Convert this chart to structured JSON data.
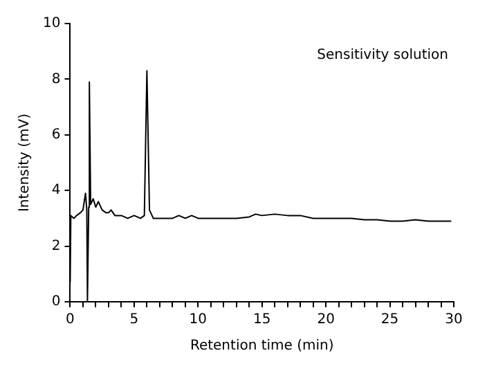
{
  "chart_data": {
    "type": "line",
    "xlabel": "Retention time (min)",
    "ylabel": "Intensity (mV)",
    "annotations": [
      "Sensitivity solution"
    ],
    "xlim": [
      0,
      30
    ],
    "ylim": [
      0,
      10
    ],
    "xticks": [
      0,
      {
        "value": 1,
        "label": null
      },
      {
        "value": 2,
        "label": null
      },
      {
        "value": 3,
        "label": null
      },
      {
        "value": 4,
        "label": null
      },
      5,
      {
        "value": 6,
        "label": null
      },
      {
        "value": 7,
        "label": null
      },
      {
        "value": 8,
        "label": null
      },
      {
        "value": 9,
        "label": null
      },
      10,
      {
        "value": 11,
        "label": null
      },
      {
        "value": 12,
        "label": null
      },
      {
        "value": 13,
        "label": null
      },
      {
        "value": 14,
        "label": null
      },
      15,
      {
        "value": 16,
        "label": null
      },
      {
        "value": 17,
        "label": null
      },
      {
        "value": 18,
        "label": null
      },
      {
        "value": 19,
        "label": null
      },
      20,
      {
        "value": 21,
        "label": null
      },
      {
        "value": 22,
        "label": null
      },
      {
        "value": 23,
        "label": null
      },
      {
        "value": 24,
        "label": null
      },
      25,
      {
        "value": 26,
        "label": null
      },
      {
        "value": 27,
        "label": null
      },
      {
        "value": 28,
        "label": null
      },
      {
        "value": 29,
        "label": null
      },
      30
    ],
    "yticks": [
      0,
      2,
      4,
      6,
      8,
      10
    ],
    "grid": false,
    "legend": false,
    "marker": "none",
    "line_style": "solid",
    "series": [
      {
        "color": "#000000",
        "x": [
          0,
          0.05,
          0.3,
          0.5,
          0.8,
          1.0,
          1.2,
          1.3,
          1.35,
          1.45,
          1.5,
          1.6,
          1.8,
          2.0,
          2.2,
          2.5,
          2.8,
          3.0,
          3.2,
          3.5,
          4,
          4.5,
          5,
          5.5,
          5.8,
          6.0,
          6.2,
          6.5,
          7,
          7.5,
          8,
          8.5,
          9,
          9.5,
          10,
          11,
          12,
          13,
          14,
          14.5,
          15,
          16,
          17,
          18,
          19,
          20,
          21,
          22,
          23,
          24,
          25,
          26,
          27,
          28,
          29,
          29.8
        ],
        "values": [
          0.7,
          3.1,
          3.0,
          3.1,
          3.2,
          3.3,
          3.9,
          3.3,
          0.0,
          3.4,
          7.9,
          3.5,
          3.7,
          3.4,
          3.6,
          3.3,
          3.2,
          3.2,
          3.3,
          3.1,
          3.1,
          3.0,
          3.1,
          3.0,
          3.1,
          8.3,
          3.3,
          3.0,
          3.0,
          3.0,
          3.0,
          3.1,
          3.0,
          3.1,
          3.0,
          3.0,
          3.0,
          3.0,
          3.05,
          3.15,
          3.1,
          3.15,
          3.1,
          3.1,
          3.0,
          3.0,
          3.0,
          3.0,
          2.95,
          2.95,
          2.9,
          2.9,
          2.95,
          2.9,
          2.9,
          2.9
        ]
      }
    ]
  }
}
